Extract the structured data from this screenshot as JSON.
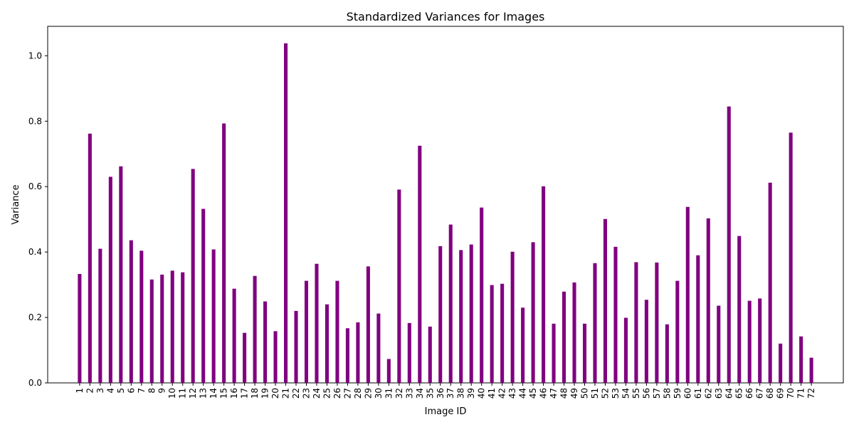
{
  "chart_data": {
    "type": "bar",
    "title": "Standardized Variances for Images",
    "xlabel": "Image ID",
    "ylabel": "Variance",
    "ylim": [
      0,
      1.09
    ],
    "yticks": [
      0.0,
      0.2,
      0.4,
      0.6,
      0.8,
      1.0
    ],
    "ytick_labels": [
      "0.0",
      "0.2",
      "0.4",
      "0.6",
      "0.8",
      "1.0"
    ],
    "bar_color": "#800080",
    "grid": false,
    "categories": [
      "1",
      "2",
      "3",
      "4",
      "5",
      "6",
      "7",
      "8",
      "9",
      "10",
      "11",
      "12",
      "13",
      "14",
      "15",
      "16",
      "17",
      "18",
      "19",
      "20",
      "21",
      "22",
      "23",
      "24",
      "25",
      "26",
      "27",
      "28",
      "29",
      "30",
      "31",
      "32",
      "33",
      "34",
      "35",
      "36",
      "37",
      "38",
      "39",
      "40",
      "41",
      "42",
      "43",
      "44",
      "45",
      "46",
      "47",
      "48",
      "49",
      "50",
      "51",
      "52",
      "53",
      "54",
      "55",
      "56",
      "57",
      "58",
      "59",
      "60",
      "61",
      "62",
      "63",
      "64",
      "65",
      "66",
      "67",
      "68",
      "69",
      "70",
      "71",
      "72"
    ],
    "values": [
      0.333,
      0.762,
      0.41,
      0.63,
      0.662,
      0.436,
      0.404,
      0.316,
      0.331,
      0.343,
      0.338,
      0.654,
      0.532,
      0.408,
      0.793,
      0.288,
      0.153,
      0.327,
      0.249,
      0.158,
      1.038,
      0.22,
      0.312,
      0.364,
      0.24,
      0.312,
      0.167,
      0.185,
      0.356,
      0.212,
      0.073,
      0.591,
      0.183,
      0.725,
      0.172,
      0.418,
      0.484,
      0.406,
      0.423,
      0.536,
      0.299,
      0.303,
      0.401,
      0.23,
      0.43,
      0.601,
      0.181,
      0.279,
      0.307,
      0.181,
      0.366,
      0.501,
      0.416,
      0.199,
      0.369,
      0.254,
      0.368,
      0.179,
      0.312,
      0.538,
      0.39,
      0.503,
      0.236,
      0.845,
      0.449,
      0.251,
      0.258,
      0.612,
      0.12,
      0.765,
      0.142,
      0.077
    ]
  }
}
